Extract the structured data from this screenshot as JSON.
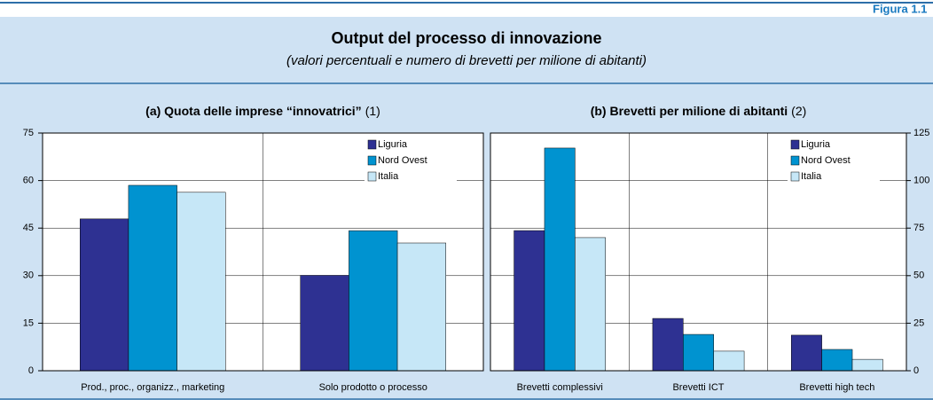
{
  "header": {
    "figure": "Figura 1.1",
    "title": "Output del processo di innovazione",
    "subtitle": "(valori percentuali e numero di brevetti per milione di abitanti)"
  },
  "chart_data": [
    {
      "type": "bar",
      "title": "(a) Quota delle imprese “innovatrici”",
      "note": "(1)",
      "categories": [
        "Prod., proc., organizz., marketing",
        "Solo prodotto o processo"
      ],
      "series": [
        {
          "name": "Liguria",
          "color": "#2e3192",
          "values": [
            47.9,
            30.1
          ]
        },
        {
          "name": "Nord Ovest",
          "color": "#0093d0",
          "values": [
            58.5,
            44.2
          ]
        },
        {
          "name": "Italia",
          "color": "#c6e7f7",
          "values": [
            56.3,
            40.3
          ]
        }
      ],
      "ylim": [
        0,
        75
      ],
      "yticks": [
        0,
        15,
        30,
        45,
        60,
        75
      ],
      "y_axis_side": "left",
      "grid": true,
      "legend": "upper right"
    },
    {
      "type": "bar",
      "title": "(b) Brevetti per milione di abitanti",
      "note": "(2)",
      "categories": [
        "Brevetti complessivi",
        "Brevetti ICT",
        "Brevetti high tech"
      ],
      "series": [
        {
          "name": "Liguria",
          "color": "#2e3192",
          "values": [
            73.7,
            27.5,
            18.7
          ]
        },
        {
          "name": "Nord Ovest",
          "color": "#0093d0",
          "values": [
            117.1,
            19.1,
            11.2
          ]
        },
        {
          "name": "Italia",
          "color": "#c6e7f7",
          "values": [
            70,
            10.3,
            6
          ]
        }
      ],
      "ylim": [
        0,
        125
      ],
      "yticks": [
        0,
        25,
        50,
        75,
        100,
        125
      ],
      "y_axis_side": "right",
      "grid": true,
      "legend": "upper right"
    }
  ]
}
